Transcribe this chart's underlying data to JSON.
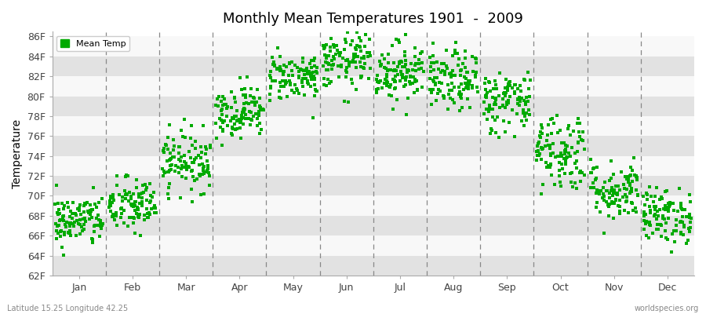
{
  "title": "Monthly Mean Temperatures 1901  -  2009",
  "ylabel": "Temperature",
  "xlabel_months": [
    "Jan",
    "Feb",
    "Mar",
    "Apr",
    "May",
    "Jun",
    "Jul",
    "Aug",
    "Sep",
    "Oct",
    "Nov",
    "Dec"
  ],
  "yticks": [
    62,
    64,
    66,
    68,
    70,
    72,
    74,
    76,
    78,
    80,
    82,
    84,
    86
  ],
  "ytick_labels": [
    "62F",
    "64F",
    "66F",
    "68F",
    "70F",
    "72F",
    "74F",
    "76F",
    "78F",
    "80F",
    "82F",
    "84F",
    "86F"
  ],
  "ylim": [
    62,
    86.5
  ],
  "dot_color": "#00aa00",
  "dot_size": 6,
  "background_color": "#f0f0f0",
  "band_white": "#f8f8f8",
  "band_gray": "#e2e2e2",
  "legend_label": "Mean Temp",
  "footer_left": "Latitude 15.25 Longitude 42.25",
  "footer_right": "worldspecies.org",
  "monthly_means": [
    67.5,
    69.0,
    73.5,
    78.5,
    82.0,
    83.5,
    82.5,
    81.5,
    79.5,
    74.5,
    70.5,
    68.0
  ],
  "monthly_stds": [
    1.3,
    1.4,
    1.5,
    1.3,
    1.2,
    1.4,
    1.5,
    1.5,
    1.6,
    2.0,
    1.5,
    1.4
  ],
  "n_years": 109
}
